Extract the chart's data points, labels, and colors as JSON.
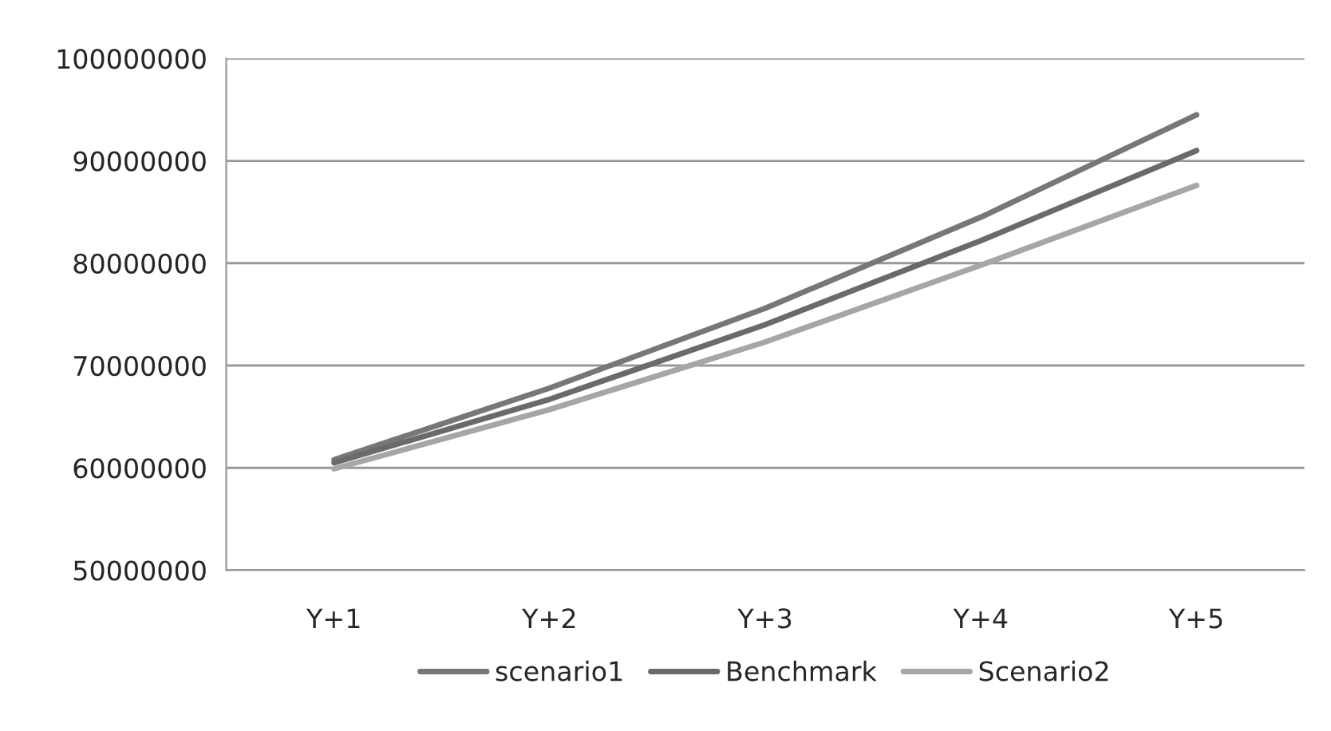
{
  "chart_data": {
    "type": "line",
    "categories": [
      "Y+1",
      "Y+2",
      "Y+3",
      "Y+4",
      "Y+5"
    ],
    "series": [
      {
        "name": "scenario1",
        "color": "#777777",
        "values": [
          60800000,
          67800000,
          75600000,
          84500000,
          94500000
        ]
      },
      {
        "name": "Benchmark",
        "color": "#6a6a6a",
        "values": [
          60500000,
          66700000,
          74000000,
          82200000,
          91000000
        ]
      },
      {
        "name": "Scenario2",
        "color": "#a6a6a6",
        "values": [
          59900000,
          65700000,
          72300000,
          79800000,
          87600000
        ]
      }
    ],
    "ylim": [
      50000000,
      100000000
    ],
    "yticks": [
      50000000,
      60000000,
      70000000,
      80000000,
      90000000,
      100000000
    ],
    "grid": "y",
    "legend": "bottom",
    "marker": "none",
    "line_style": "solid"
  }
}
